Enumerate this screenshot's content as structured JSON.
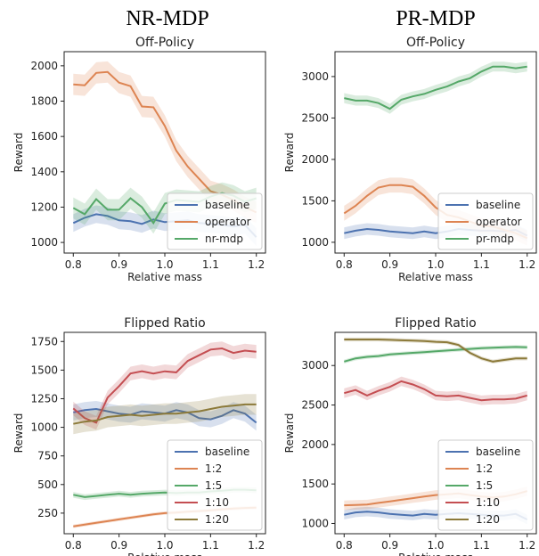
{
  "headers": [
    "NR-MDP",
    "PR-MDP"
  ],
  "colors": {
    "baseline": "#4C72B0",
    "operator": "#DD8452",
    "nr-mdp": "#55A868",
    "pr-mdp": "#55A868",
    "1:2": "#DD8452",
    "1:5": "#55A868",
    "1:10": "#C44E52",
    "1:20": "#8C7A3A"
  },
  "chart_data": [
    {
      "type": "line",
      "title": "Off-Policy",
      "xlabel": "Relative mass",
      "ylabel": "Reward",
      "xlim": [
        0.78,
        1.22
      ],
      "ylim": [
        940,
        2080
      ],
      "xticks": [
        0.8,
        0.9,
        1.0,
        1.1,
        1.2
      ],
      "xtick_labels": [
        "0.8",
        "0.9",
        "1.0",
        "1.1",
        "1.2"
      ],
      "yticks": [
        1000,
        1200,
        1400,
        1600,
        1800,
        2000
      ],
      "ytick_labels": [
        "1000",
        "1200",
        "1400",
        "1600",
        "1800",
        "2000"
      ],
      "legend_position": "lower-right",
      "x": [
        0.8,
        0.825,
        0.85,
        0.875,
        0.9,
        0.925,
        0.95,
        0.975,
        1.0,
        1.025,
        1.05,
        1.075,
        1.1,
        1.125,
        1.15,
        1.175,
        1.2
      ],
      "series": [
        {
          "name": "baseline",
          "values": [
            1110,
            1140,
            1160,
            1150,
            1125,
            1120,
            1105,
            1130,
            1115,
            1120,
            1125,
            1110,
            1105,
            1100,
            1090,
            1100,
            1030
          ],
          "band": 50
        },
        {
          "name": "operator",
          "values": [
            1895,
            1890,
            1960,
            1965,
            1905,
            1885,
            1770,
            1765,
            1660,
            1520,
            1430,
            1360,
            1290,
            1270,
            1240,
            1200,
            1170
          ],
          "band": 60
        },
        {
          "name": "nr-mdp",
          "values": [
            1195,
            1160,
            1245,
            1185,
            1185,
            1250,
            1200,
            1110,
            1220,
            1240,
            1235,
            1230,
            1260,
            1280,
            1265,
            1230,
            1250
          ],
          "band": 60
        }
      ]
    },
    {
      "type": "line",
      "title": "Off-Policy",
      "xlabel": "Relative mass",
      "ylabel": "Reward",
      "xlim": [
        0.78,
        1.22
      ],
      "ylim": [
        870,
        3300
      ],
      "xticks": [
        0.8,
        0.9,
        1.0,
        1.1,
        1.2
      ],
      "xtick_labels": [
        "0.8",
        "0.9",
        "1.0",
        "1.1",
        "1.2"
      ],
      "yticks": [
        1000,
        1500,
        2000,
        2500,
        3000
      ],
      "ytick_labels": [
        "1000",
        "1500",
        "2000",
        "2500",
        "3000"
      ],
      "legend_position": "lower-right",
      "x": [
        0.8,
        0.825,
        0.85,
        0.875,
        0.9,
        0.925,
        0.95,
        0.975,
        1.0,
        1.025,
        1.05,
        1.075,
        1.1,
        1.125,
        1.15,
        1.175,
        1.2
      ],
      "series": [
        {
          "name": "baseline",
          "values": [
            1110,
            1140,
            1160,
            1150,
            1130,
            1120,
            1110,
            1130,
            1110,
            1130,
            1160,
            1150,
            1140,
            1140,
            1130,
            1150,
            1080
          ],
          "band": 70
        },
        {
          "name": "operator",
          "values": [
            1350,
            1440,
            1560,
            1660,
            1690,
            1690,
            1670,
            1560,
            1420,
            1330,
            1300,
            1250,
            1200,
            1190,
            1150,
            1110,
            1050
          ],
          "band": 90
        },
        {
          "name": "pr-mdp",
          "values": [
            2740,
            2710,
            2710,
            2680,
            2610,
            2720,
            2760,
            2790,
            2840,
            2880,
            2940,
            2980,
            3060,
            3120,
            3120,
            3100,
            3120
          ],
          "band": 60
        }
      ]
    },
    {
      "type": "line",
      "title": "Flipped Ratio",
      "xlabel": "Relative mass",
      "ylabel": "Reward",
      "xlim": [
        0.78,
        1.22
      ],
      "ylim": [
        70,
        1830
      ],
      "xticks": [
        0.8,
        0.9,
        1.0,
        1.1,
        1.2
      ],
      "xtick_labels": [
        "0.8",
        "0.9",
        "1.0",
        "1.1",
        "1.2"
      ],
      "yticks": [
        250,
        500,
        750,
        1000,
        1250,
        1500,
        1750
      ],
      "ytick_labels": [
        "250",
        "500",
        "750",
        "1000",
        "1250",
        "1500",
        "1750"
      ],
      "legend_position": "lower-right",
      "x": [
        0.8,
        0.825,
        0.85,
        0.875,
        0.9,
        0.925,
        0.95,
        0.975,
        1.0,
        1.025,
        1.05,
        1.075,
        1.1,
        1.125,
        1.15,
        1.175,
        1.2
      ],
      "series": [
        {
          "name": "baseline",
          "values": [
            1130,
            1150,
            1160,
            1140,
            1120,
            1110,
            1140,
            1130,
            1120,
            1150,
            1130,
            1080,
            1070,
            1100,
            1150,
            1120,
            1040
          ],
          "band": 70
        },
        {
          "name": "1:2",
          "values": [
            135,
            150,
            165,
            180,
            195,
            210,
            225,
            240,
            250,
            255,
            262,
            268,
            275,
            283,
            290,
            295,
            298
          ],
          "band": 15
        },
        {
          "name": "1:5",
          "values": [
            410,
            390,
            400,
            410,
            420,
            410,
            420,
            425,
            430,
            425,
            430,
            430,
            440,
            445,
            455,
            455,
            450
          ],
          "band": 25
        },
        {
          "name": "1:10",
          "values": [
            1165,
            1080,
            1040,
            1260,
            1360,
            1470,
            1490,
            1470,
            1490,
            1480,
            1580,
            1630,
            1680,
            1690,
            1650,
            1670,
            1660
          ],
          "band": 60
        },
        {
          "name": "1:20",
          "values": [
            1030,
            1050,
            1060,
            1090,
            1100,
            1110,
            1100,
            1110,
            1120,
            1120,
            1130,
            1140,
            1160,
            1180,
            1190,
            1200,
            1200
          ],
          "band": 90
        }
      ]
    },
    {
      "type": "line",
      "title": "Flipped Ratio",
      "xlabel": "Relative mass",
      "ylabel": "Reward",
      "xlim": [
        0.78,
        1.22
      ],
      "ylim": [
        870,
        3420
      ],
      "xticks": [
        0.8,
        0.9,
        1.0,
        1.1,
        1.2
      ],
      "xtick_labels": [
        "0.8",
        "0.9",
        "1.0",
        "1.1",
        "1.2"
      ],
      "yticks": [
        1000,
        1500,
        2000,
        2500,
        3000
      ],
      "ytick_labels": [
        "1000",
        "1500",
        "2000",
        "2500",
        "3000"
      ],
      "legend_position": "lower-right",
      "x": [
        0.8,
        0.825,
        0.85,
        0.875,
        0.9,
        0.925,
        0.95,
        0.975,
        1.0,
        1.025,
        1.05,
        1.075,
        1.1,
        1.125,
        1.15,
        1.175,
        1.2
      ],
      "series": [
        {
          "name": "baseline",
          "values": [
            1110,
            1140,
            1150,
            1140,
            1120,
            1110,
            1100,
            1120,
            1110,
            1120,
            1130,
            1120,
            1110,
            1100,
            1100,
            1120,
            1050
          ],
          "band": 60
        },
        {
          "name": "1:2",
          "values": [
            1230,
            1235,
            1240,
            1260,
            1280,
            1300,
            1320,
            1340,
            1360,
            1370,
            1380,
            1360,
            1340,
            1330,
            1340,
            1370,
            1410
          ],
          "band": 60
        },
        {
          "name": "1:5",
          "values": [
            3050,
            3090,
            3110,
            3120,
            3140,
            3150,
            3160,
            3170,
            3180,
            3190,
            3200,
            3210,
            3220,
            3225,
            3230,
            3235,
            3230
          ],
          "band": 25
        },
        {
          "name": "1:10",
          "values": [
            2650,
            2690,
            2620,
            2680,
            2730,
            2800,
            2760,
            2700,
            2620,
            2610,
            2620,
            2590,
            2560,
            2570,
            2570,
            2580,
            2620
          ],
          "band": 60
        },
        {
          "name": "1:20",
          "values": [
            3330,
            3330,
            3330,
            3330,
            3325,
            3320,
            3315,
            3310,
            3300,
            3295,
            3260,
            3160,
            3090,
            3050,
            3070,
            3090,
            3090
          ],
          "band": 25
        }
      ]
    }
  ]
}
